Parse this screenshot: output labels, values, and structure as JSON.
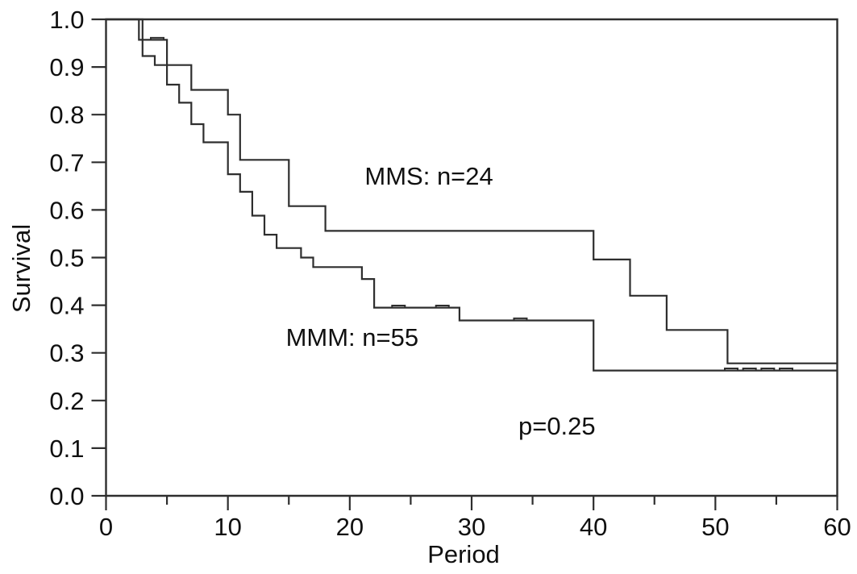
{
  "figure": {
    "background_color": "#ffffff",
    "line_color": "#2e2e2e",
    "text_color": "#101010"
  },
  "chart_data": {
    "type": "line",
    "subtype": "kaplan-meier-step",
    "title": "",
    "xlabel": "Period",
    "ylabel": "Survival",
    "xlim": [
      0,
      60
    ],
    "ylim": [
      0.0,
      1.0
    ],
    "grid": false,
    "legend_position": "inline-annotations",
    "x_major_ticks": [
      0,
      10,
      20,
      30,
      40,
      50,
      60
    ],
    "x_tick_labels": [
      "0",
      "10",
      "20",
      "30",
      "40",
      "50",
      "60"
    ],
    "x_minor_ticks": [
      5,
      15,
      25,
      35,
      45,
      55
    ],
    "y_major_ticks": [
      1.0,
      0.9,
      0.8,
      0.7,
      0.6,
      0.5,
      0.4,
      0.3,
      0.2,
      0.1,
      0.0
    ],
    "y_tick_labels": [
      "1.0",
      "0.9",
      "0.8",
      "0.7",
      "0.6",
      "0.5",
      "0.4",
      "0.3",
      "0.2",
      "0.1",
      "0.0"
    ],
    "series": [
      {
        "name": "MMS",
        "n": 24,
        "annotation": "MMS: n=24",
        "start_survival": 1.0,
        "end_period": 60,
        "steps": [
          [
            3,
            0.923
          ],
          [
            4,
            0.904
          ],
          [
            7,
            0.852
          ],
          [
            10,
            0.8
          ],
          [
            11,
            0.705
          ],
          [
            15,
            0.608
          ],
          [
            18,
            0.556
          ],
          [
            40,
            0.496
          ],
          [
            43,
            0.42
          ],
          [
            46,
            0.348
          ],
          [
            51,
            0.278
          ]
        ],
        "censor_marks": []
      },
      {
        "name": "MMM",
        "n": 55,
        "annotation": "MMM: n=55",
        "start_survival": 1.0,
        "end_period": 60,
        "steps": [
          [
            2.7,
            0.957
          ],
          [
            5,
            0.863
          ],
          [
            6,
            0.825
          ],
          [
            7,
            0.78
          ],
          [
            8,
            0.742
          ],
          [
            10,
            0.675
          ],
          [
            11,
            0.638
          ],
          [
            12,
            0.588
          ],
          [
            13,
            0.548
          ],
          [
            14,
            0.52
          ],
          [
            16,
            0.5
          ],
          [
            17,
            0.48
          ],
          [
            21,
            0.455
          ],
          [
            22,
            0.395
          ],
          [
            29,
            0.368
          ],
          [
            40,
            0.263
          ]
        ],
        "censor_marks": [
          [
            4.2,
            0.957
          ],
          [
            24,
            0.395
          ],
          [
            27.6,
            0.395
          ],
          [
            34,
            0.368
          ],
          [
            51.3,
            0.263
          ],
          [
            52.8,
            0.263
          ],
          [
            54.3,
            0.263
          ],
          [
            55.8,
            0.263
          ]
        ]
      }
    ],
    "annotations": [
      {
        "text": "MMS: n=24",
        "t": 26.5,
        "s": 0.672
      },
      {
        "text": "MMM: n=55",
        "t": 20.2,
        "s": 0.333
      },
      {
        "text": "p=0.25",
        "t": 37.0,
        "s": 0.147
      }
    ]
  }
}
